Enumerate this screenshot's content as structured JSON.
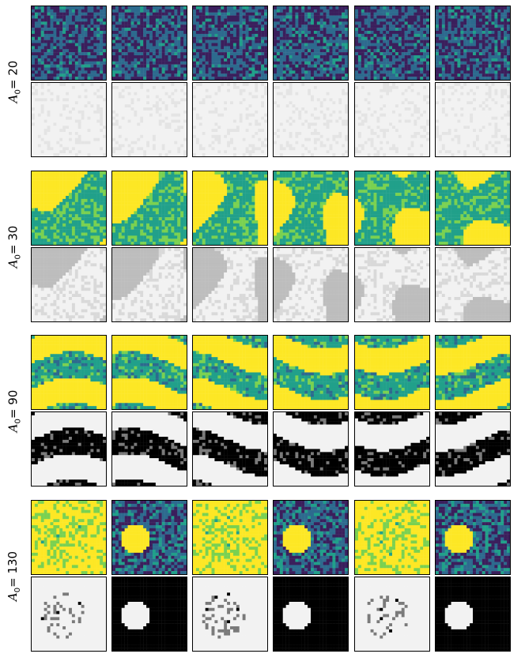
{
  "rows": [
    {
      "prefix": "A",
      "sub": "0",
      "value": " = 20",
      "top_state": "noise",
      "bottom_state": "faint"
    },
    {
      "prefix": "A",
      "sub": "0",
      "value": " = 30",
      "top_state": "domains",
      "bottom_state": "light"
    },
    {
      "prefix": "A",
      "sub": "0",
      "value": " = 90",
      "top_state": "bands",
      "bottom_state": "contrast"
    },
    {
      "prefix": "A",
      "sub": "0",
      "value": " = 130",
      "top_state": "mixed",
      "bottom_state": "mixed"
    }
  ],
  "columns": 6,
  "colors": {
    "viridis_dark": "#3b1f5c",
    "viridis_blue": "#2d6a8e",
    "viridis_teal": "#21a08a",
    "viridis_green": "#7ad151",
    "viridis_yellow": "#fde725",
    "gray_light": "#f2f2f2",
    "gray_black": "#000000"
  }
}
